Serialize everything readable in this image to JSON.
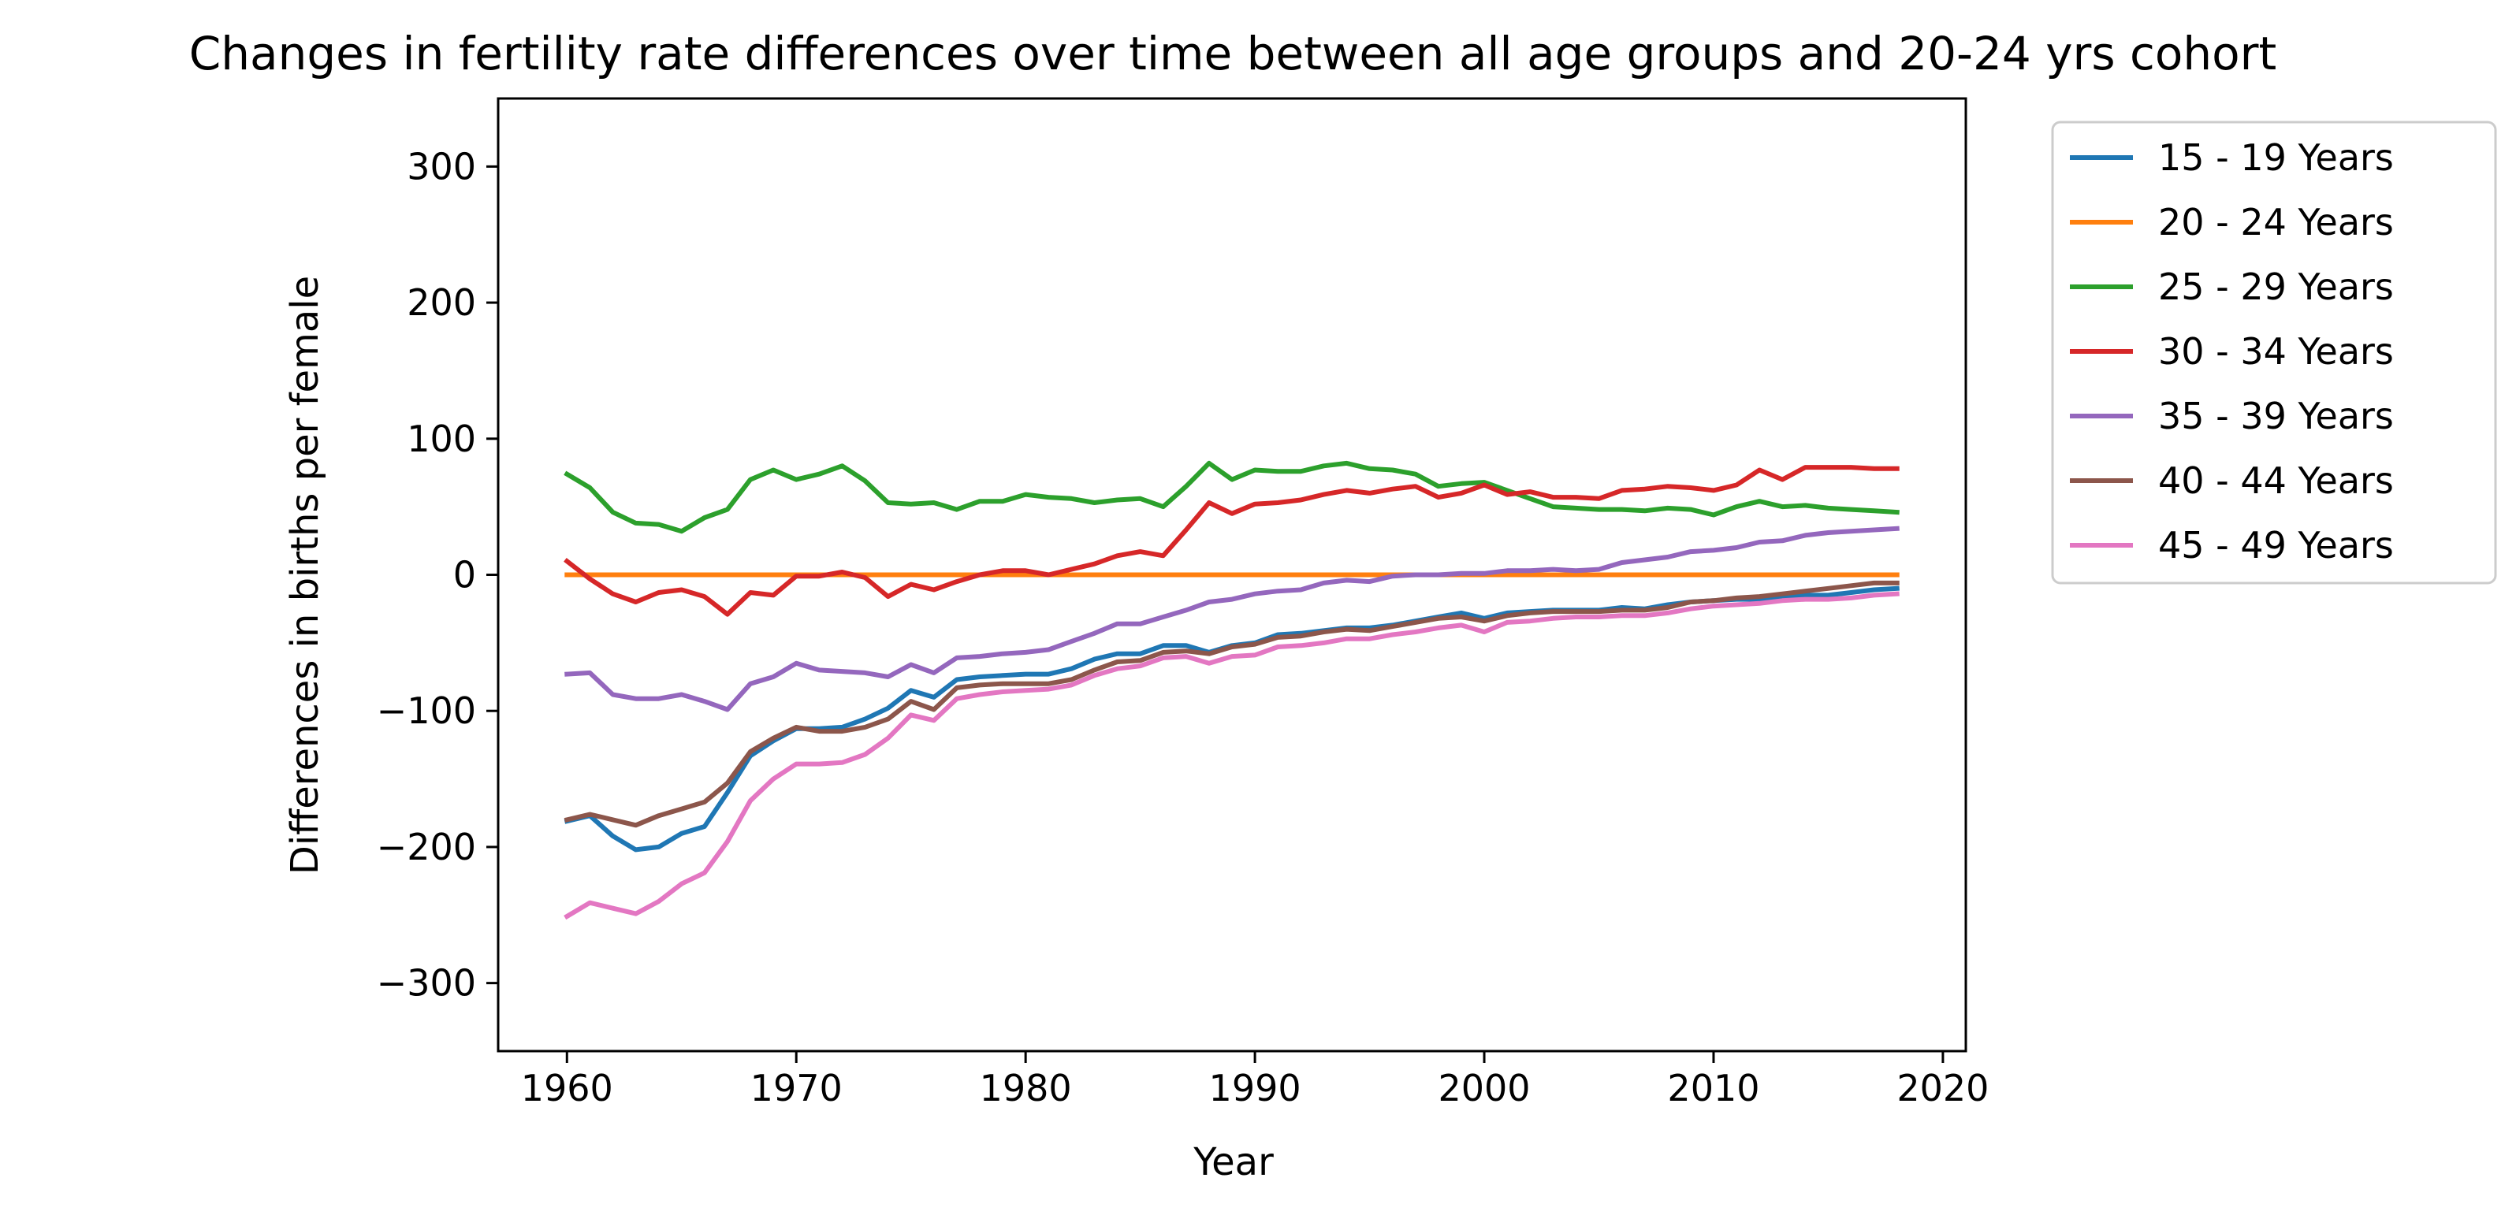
{
  "chart_data": {
    "type": "line",
    "title": "Changes in fertility rate differences over time between all age groups and 20-24 yrs cohort",
    "xlabel": "Year",
    "ylabel": "Differences in births per female",
    "xlim": [
      1957,
      2021
    ],
    "ylim": [
      -350,
      350
    ],
    "xticks": [
      1960,
      1970,
      1980,
      1990,
      2000,
      2010,
      2020
    ],
    "yticks": [
      -300,
      -200,
      -100,
      0,
      100,
      200,
      300
    ],
    "xtick_labels": [
      "1960",
      "1970",
      "1980",
      "1990",
      "2000",
      "2010",
      "2020"
    ],
    "ytick_labels": [
      "−300",
      "−200",
      "−100",
      "0",
      "100",
      "200",
      "300"
    ],
    "grid": false,
    "legend_position": "outside-upper-right",
    "x": [
      1960,
      1961,
      1962,
      1963,
      1964,
      1965,
      1966,
      1967,
      1968,
      1969,
      1970,
      1971,
      1972,
      1973,
      1974,
      1975,
      1976,
      1977,
      1978,
      1979,
      1980,
      1981,
      1982,
      1983,
      1984,
      1985,
      1986,
      1987,
      1988,
      1989,
      1990,
      1991,
      1992,
      1993,
      1994,
      1995,
      1996,
      1997,
      1998,
      1999,
      2000,
      2001,
      2002,
      2003,
      2004,
      2005,
      2006,
      2007,
      2008,
      2009,
      2010,
      2011,
      2012,
      2013,
      2014,
      2015,
      2016,
      2017,
      2018
    ],
    "series": [
      {
        "name": "15 - 19 Years",
        "color": "#1f77b4",
        "values": [
          -181,
          -177,
          -192,
          -202,
          -200,
          -190,
          -185,
          -160,
          -133,
          -122,
          -113,
          -113,
          -112,
          -106,
          -98,
          -85,
          -90,
          -77,
          -75,
          -74,
          -73,
          -73,
          -69,
          -62,
          -58,
          -58,
          -52,
          -52,
          -57,
          -52,
          -50,
          -44,
          -43,
          -41,
          -39,
          -39,
          -37,
          -34,
          -31,
          -28,
          -32,
          -28,
          -27,
          -26,
          -26,
          -26,
          -24,
          -25,
          -22,
          -20,
          -19,
          -18,
          -18,
          -16,
          -15,
          -15,
          -13,
          -11,
          -10
        ]
      },
      {
        "name": "20 - 24 Years",
        "color": "#ff7f0e",
        "values": [
          0,
          0,
          0,
          0,
          0,
          0,
          0,
          0,
          0,
          0,
          0,
          0,
          0,
          0,
          0,
          0,
          0,
          0,
          0,
          0,
          0,
          0,
          0,
          0,
          0,
          0,
          0,
          0,
          0,
          0,
          0,
          0,
          0,
          0,
          0,
          0,
          0,
          0,
          0,
          0,
          0,
          0,
          0,
          0,
          0,
          0,
          0,
          0,
          0,
          0,
          0,
          0,
          0,
          0,
          0,
          0,
          0,
          0,
          0
        ]
      },
      {
        "name": "25 - 29 Years",
        "color": "#2ca02c",
        "values": [
          74,
          64,
          46,
          38,
          37,
          32,
          42,
          48,
          70,
          77,
          70,
          74,
          80,
          69,
          53,
          52,
          53,
          48,
          54,
          54,
          59,
          57,
          56,
          53,
          55,
          56,
          50,
          65,
          82,
          70,
          77,
          76,
          76,
          80,
          82,
          78,
          77,
          74,
          65,
          67,
          68,
          62,
          56,
          50,
          49,
          48,
          48,
          47,
          49,
          48,
          44,
          50,
          54,
          50,
          51,
          49,
          48,
          47,
          46
        ]
      },
      {
        "name": "30 - 34 Years",
        "color": "#d62728",
        "values": [
          10,
          -3,
          -14,
          -20,
          -13,
          -11,
          -16,
          -29,
          -13,
          -15,
          -1,
          -1,
          2,
          -2,
          -16,
          -7,
          -11,
          -5,
          0,
          3,
          3,
          0,
          4,
          8,
          14,
          17,
          14,
          33,
          53,
          45,
          52,
          53,
          55,
          59,
          62,
          60,
          63,
          65,
          57,
          60,
          66,
          59,
          61,
          57,
          57,
          56,
          62,
          63,
          65,
          64,
          62,
          66,
          77,
          70,
          79,
          79,
          79,
          78,
          78
        ]
      },
      {
        "name": "35 - 39 Years",
        "color": "#9467bd",
        "values": [
          -73,
          -72,
          -88,
          -91,
          -91,
          -88,
          -93,
          -99,
          -80,
          -75,
          -65,
          -70,
          -71,
          -72,
          -75,
          -66,
          -72,
          -61,
          -60,
          -58,
          -57,
          -55,
          -49,
          -43,
          -36,
          -36,
          -31,
          -26,
          -20,
          -18,
          -14,
          -12,
          -11,
          -6,
          -4,
          -5,
          -1,
          0,
          0,
          1,
          1,
          3,
          3,
          4,
          3,
          4,
          9,
          11,
          13,
          17,
          18,
          20,
          24,
          25,
          29,
          31,
          32,
          33,
          34
        ]
      },
      {
        "name": "40 - 44 Years",
        "color": "#8c564b",
        "values": [
          -180,
          -176,
          -180,
          -184,
          -177,
          -172,
          -167,
          -153,
          -130,
          -120,
          -112,
          -115,
          -115,
          -112,
          -106,
          -93,
          -99,
          -83,
          -81,
          -80,
          -80,
          -80,
          -77,
          -70,
          -64,
          -63,
          -57,
          -56,
          -58,
          -53,
          -51,
          -46,
          -45,
          -42,
          -40,
          -41,
          -38,
          -35,
          -32,
          -31,
          -34,
          -30,
          -28,
          -27,
          -27,
          -27,
          -26,
          -26,
          -24,
          -20,
          -19,
          -17,
          -16,
          -14,
          -12,
          -10,
          -8,
          -6,
          -6
        ]
      },
      {
        "name": "45 - 49 Years",
        "color": "#e377c2",
        "values": [
          -251,
          -241,
          -245,
          -249,
          -240,
          -227,
          -219,
          -196,
          -166,
          -150,
          -139,
          -139,
          -138,
          -132,
          -120,
          -103,
          -107,
          -91,
          -88,
          -86,
          -85,
          -84,
          -81,
          -74,
          -69,
          -67,
          -61,
          -60,
          -65,
          -60,
          -59,
          -53,
          -52,
          -50,
          -47,
          -47,
          -44,
          -42,
          -39,
          -37,
          -42,
          -35,
          -34,
          -32,
          -31,
          -31,
          -30,
          -30,
          -28,
          -25,
          -23,
          -22,
          -21,
          -19,
          -18,
          -18,
          -17,
          -15,
          -14
        ]
      }
    ]
  }
}
